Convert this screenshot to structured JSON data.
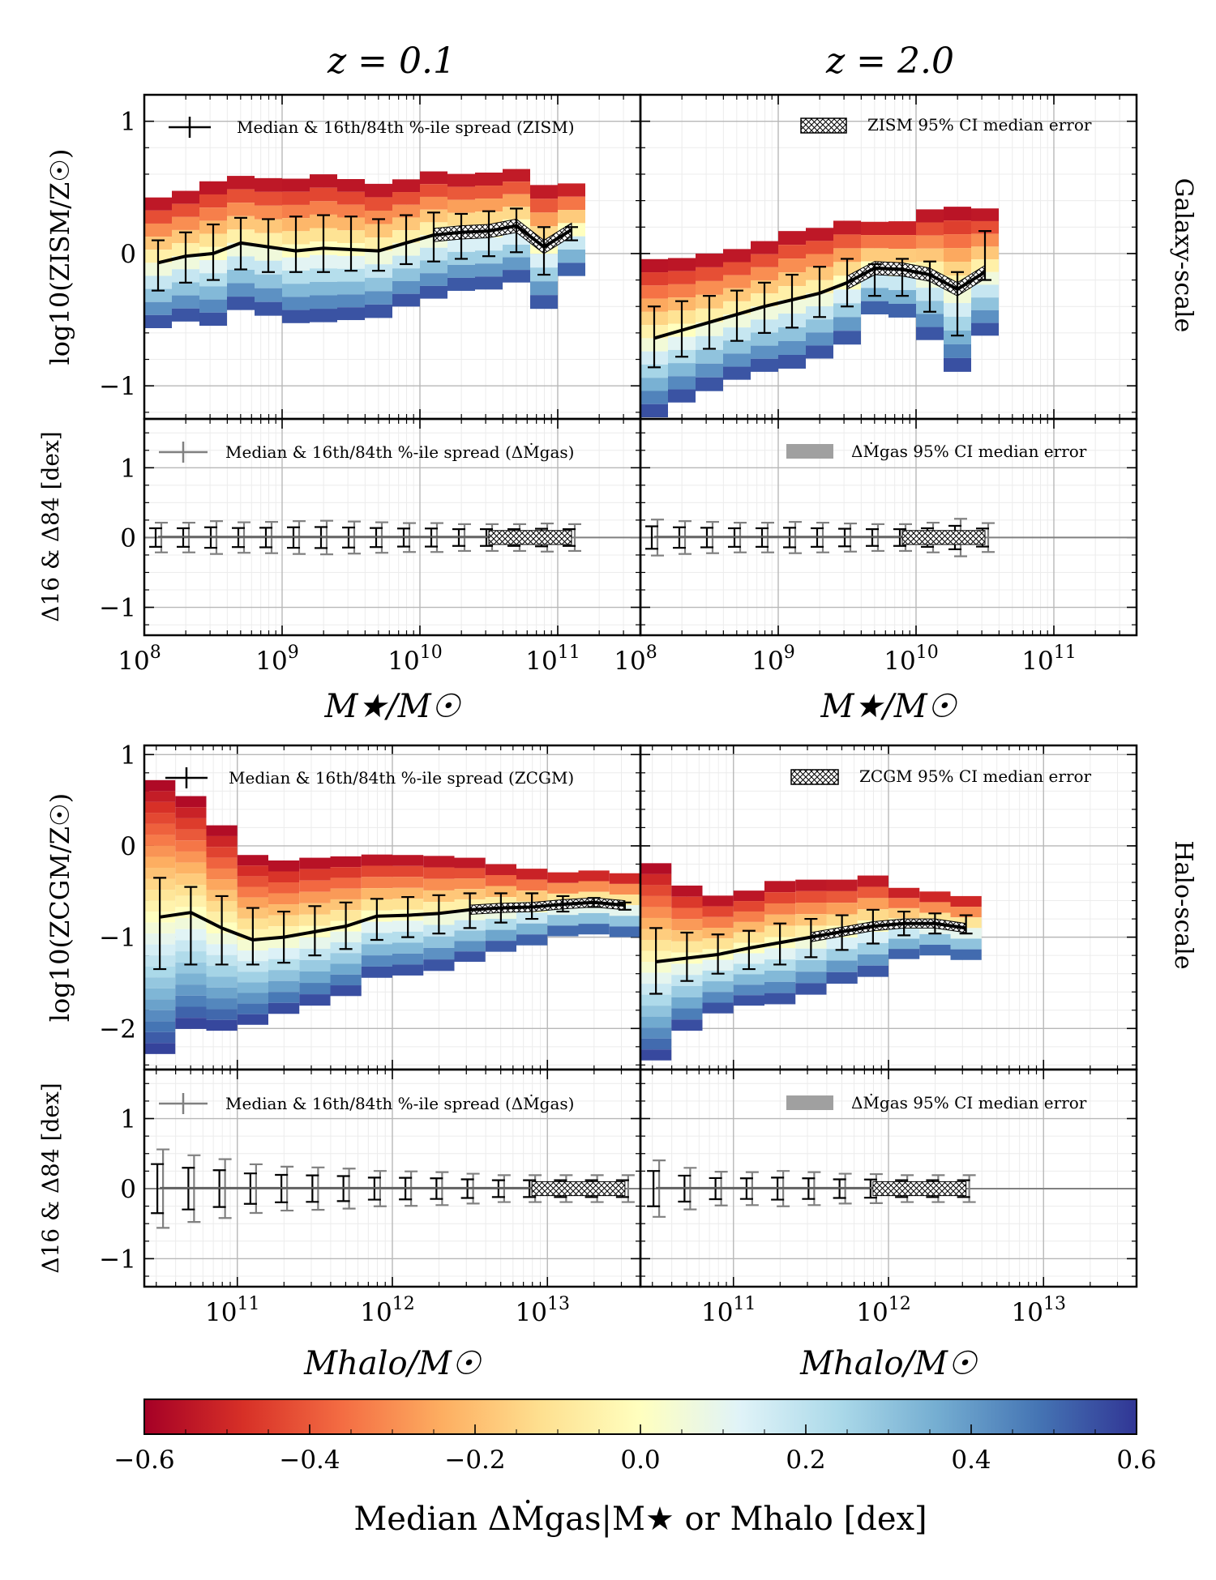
{
  "figure": {
    "col_titles": [
      "z = 0.1",
      "z = 2.0"
    ],
    "row_labels": [
      "Galaxy-scale",
      "Halo-scale"
    ]
  },
  "colorbar": {
    "label": "Median ΔṀgas|M★ or Mhalo [dex]",
    "ticks": [
      "−0.6",
      "−0.4",
      "−0.2",
      "0.0",
      "0.2",
      "0.4",
      "0.6"
    ],
    "range": [
      -0.6,
      0.6
    ]
  },
  "colors": {
    "median_line": "#000000",
    "delta_errorbars": "#808080",
    "ci_band_delta": "#a0a0a0",
    "grid": "#b8b8b8",
    "minor_grid": "#ececec"
  },
  "chart_data": [
    {
      "id": "galaxy_z01_main",
      "type": "heatmap+line",
      "ylabel": "log10(ZISM/Z☉)",
      "xlabel": "M★/M☉",
      "xlim_log10": [
        8.0,
        11.6
      ],
      "ylim": [
        -1.25,
        1.2
      ],
      "yticks": [
        "−1",
        "0",
        "1"
      ],
      "legend": [
        "Median & 16th/84th %-ile spread (ZISM)"
      ],
      "median": {
        "x": [
          8.1,
          8.3,
          8.5,
          8.7,
          8.9,
          9.1,
          9.3,
          9.5,
          9.7,
          9.9,
          10.1,
          10.3,
          10.5,
          10.7,
          10.9,
          11.1
        ],
        "y": [
          -0.07,
          -0.02,
          0.0,
          0.08,
          0.05,
          0.02,
          0.04,
          0.03,
          0.02,
          0.08,
          0.14,
          0.16,
          0.17,
          0.21,
          0.05,
          0.18
        ],
        "lo": [
          -0.28,
          -0.22,
          -0.2,
          -0.12,
          -0.14,
          -0.14,
          -0.14,
          -0.13,
          -0.13,
          -0.08,
          -0.06,
          -0.04,
          -0.02,
          0.01,
          -0.16,
          0.1
        ],
        "hi": [
          0.1,
          0.16,
          0.22,
          0.27,
          0.26,
          0.28,
          0.29,
          0.28,
          0.26,
          0.29,
          0.31,
          0.3,
          0.32,
          0.34,
          0.2,
          0.2
        ]
      }
    },
    {
      "id": "galaxy_z2_main",
      "type": "heatmap+line",
      "ylabel": "",
      "xlabel": "M★/M☉",
      "xlim_log10": [
        8.0,
        11.6
      ],
      "ylim": [
        -1.25,
        1.2
      ],
      "legend": [
        "ZISM 95% CI median error"
      ],
      "median": {
        "x": [
          8.1,
          8.3,
          8.5,
          8.7,
          8.9,
          9.1,
          9.3,
          9.5,
          9.7,
          9.9,
          10.1,
          10.3,
          10.5
        ],
        "y": [
          -0.64,
          -0.58,
          -0.52,
          -0.46,
          -0.4,
          -0.35,
          -0.3,
          -0.22,
          -0.11,
          -0.12,
          -0.16,
          -0.27,
          -0.14
        ],
        "lo": [
          -0.86,
          -0.78,
          -0.72,
          -0.66,
          -0.6,
          -0.56,
          -0.48,
          -0.4,
          -0.32,
          -0.32,
          -0.44,
          -0.62,
          -0.2
        ],
        "hi": [
          -0.4,
          -0.36,
          -0.32,
          -0.28,
          -0.22,
          -0.16,
          -0.1,
          -0.04,
          -0.08,
          -0.04,
          -0.06,
          -0.14,
          0.17
        ]
      }
    },
    {
      "id": "galaxy_z01_delta",
      "type": "errorbar",
      "ylabel": "Δ16 & Δ84 [dex]",
      "ylim": [
        -1.4,
        1.7
      ],
      "yticks": [
        "−1",
        "0",
        "1"
      ],
      "xticks": [
        "10^8",
        "10^9",
        "10^10",
        "10^11"
      ],
      "legend": [
        "Median & 16th/84th %-ile spread (ΔṀgas)"
      ]
    },
    {
      "id": "galaxy_z2_delta",
      "type": "errorbar",
      "ylabel": "",
      "ylim": [
        -1.4,
        1.7
      ],
      "xticks": [
        "10^8",
        "10^9",
        "10^10",
        "10^11"
      ],
      "legend": [
        "ΔṀgas 95% CI median error"
      ]
    },
    {
      "id": "halo_z01_main",
      "type": "heatmap+line",
      "ylabel": "log10(ZCGM/Z☉)",
      "xlabel": "Mhalo/M☉",
      "xlim_log10": [
        10.4,
        13.6
      ],
      "ylim": [
        -2.45,
        1.1
      ],
      "yticks": [
        "−2",
        "−1",
        "0",
        "1"
      ],
      "legend": [
        "Median & 16th/84th %-ile spread (ZCGM)"
      ],
      "median": {
        "x": [
          10.5,
          10.7,
          10.9,
          11.1,
          11.3,
          11.5,
          11.7,
          11.9,
          12.1,
          12.3,
          12.5,
          12.7,
          12.9,
          13.1,
          13.3,
          13.5
        ],
        "y": [
          -0.78,
          -0.73,
          -0.9,
          -1.03,
          -1.0,
          -0.94,
          -0.88,
          -0.77,
          -0.76,
          -0.74,
          -0.7,
          -0.68,
          -0.67,
          -0.64,
          -0.62,
          -0.65
        ],
        "lo": [
          -1.35,
          -1.3,
          -1.3,
          -1.3,
          -1.28,
          -1.2,
          -1.13,
          -1.03,
          -1.0,
          -0.96,
          -0.9,
          -0.84,
          -0.8,
          -0.72,
          -0.67,
          -0.7
        ],
        "hi": [
          -0.35,
          -0.45,
          -0.55,
          -0.68,
          -0.72,
          -0.66,
          -0.62,
          -0.58,
          -0.56,
          -0.54,
          -0.52,
          -0.52,
          -0.52,
          -0.55,
          -0.57,
          -0.62
        ]
      }
    },
    {
      "id": "halo_z2_main",
      "type": "heatmap+line",
      "ylabel": "",
      "xlabel": "Mhalo/M☉",
      "xlim_log10": [
        10.4,
        13.6
      ],
      "ylim": [
        -2.45,
        1.1
      ],
      "legend": [
        "ZCGM 95% CI median error"
      ],
      "median": {
        "x": [
          10.5,
          10.7,
          10.9,
          11.1,
          11.3,
          11.5,
          11.7,
          11.9,
          12.1,
          12.3,
          12.5
        ],
        "y": [
          -1.27,
          -1.23,
          -1.19,
          -1.12,
          -1.06,
          -1.0,
          -0.94,
          -0.88,
          -0.85,
          -0.85,
          -0.9
        ],
        "lo": [
          -1.62,
          -1.48,
          -1.4,
          -1.35,
          -1.3,
          -1.22,
          -1.14,
          -1.07,
          -0.98,
          -0.96,
          -0.96
        ],
        "hi": [
          -0.9,
          -0.95,
          -0.97,
          -0.93,
          -0.85,
          -0.8,
          -0.76,
          -0.7,
          -0.72,
          -0.74,
          -0.76
        ]
      }
    },
    {
      "id": "halo_z01_delta",
      "type": "errorbar",
      "ylabel": "Δ16 & Δ84 [dex]",
      "ylim": [
        -1.4,
        1.7
      ],
      "yticks": [
        "−1",
        "0",
        "1"
      ],
      "xticks": [
        "10^11",
        "10^12",
        "10^13"
      ],
      "legend": [
        "Median & 16th/84th %-ile spread (ΔṀgas)"
      ]
    },
    {
      "id": "halo_z2_delta",
      "type": "errorbar",
      "ylabel": "",
      "ylim": [
        -1.4,
        1.7
      ],
      "xticks": [
        "10^11",
        "10^12",
        "10^13"
      ],
      "legend": [
        "ΔṀgas 95% CI median error"
      ]
    }
  ]
}
